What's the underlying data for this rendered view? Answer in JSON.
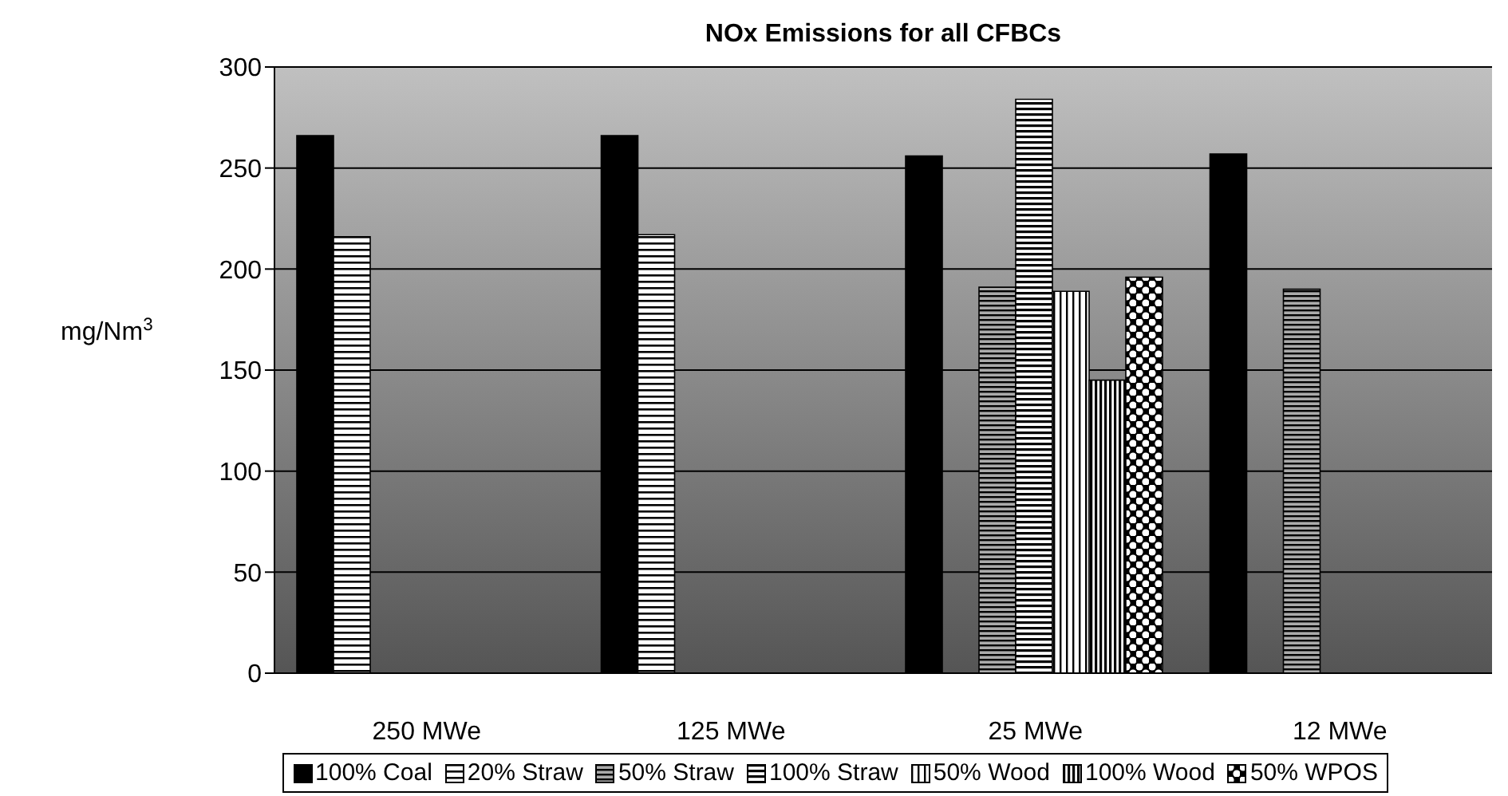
{
  "chart_data": {
    "type": "bar",
    "title": "NOx Emissions for all CFBCs",
    "ylabel": "mg/Nm$^{3}$",
    "categories": [
      "250 MWe",
      "125 MWe",
      "25 MWe",
      "12 MWe"
    ],
    "series": [
      {
        "name": "100% Coal",
        "color": "#000000",
        "values": [
          266,
          266,
          256,
          257
        ]
      },
      {
        "name": "20% Straw",
        "color": "#000000",
        "values": [
          216,
          217,
          null,
          null
        ]
      },
      {
        "name": "50% Straw",
        "color": "#000000",
        "values": [
          null,
          null,
          191,
          190
        ]
      },
      {
        "name": "100% Straw",
        "color": "#000000",
        "values": [
          null,
          null,
          284,
          null
        ]
      },
      {
        "name": "50% Wood",
        "color": "#000000",
        "values": [
          null,
          null,
          189,
          null
        ]
      },
      {
        "name": "100% Wood",
        "color": "#000000",
        "values": [
          null,
          null,
          145,
          null
        ]
      },
      {
        "name": "50% WPOS",
        "color": "#000000",
        "values": [
          null,
          null,
          196,
          null
        ]
      }
    ],
    "ylim": [
      0,
      300
    ],
    "yticks": [
      0,
      50,
      100,
      150,
      200,
      250,
      300
    ],
    "grid": "y",
    "legend": "bottom"
  }
}
